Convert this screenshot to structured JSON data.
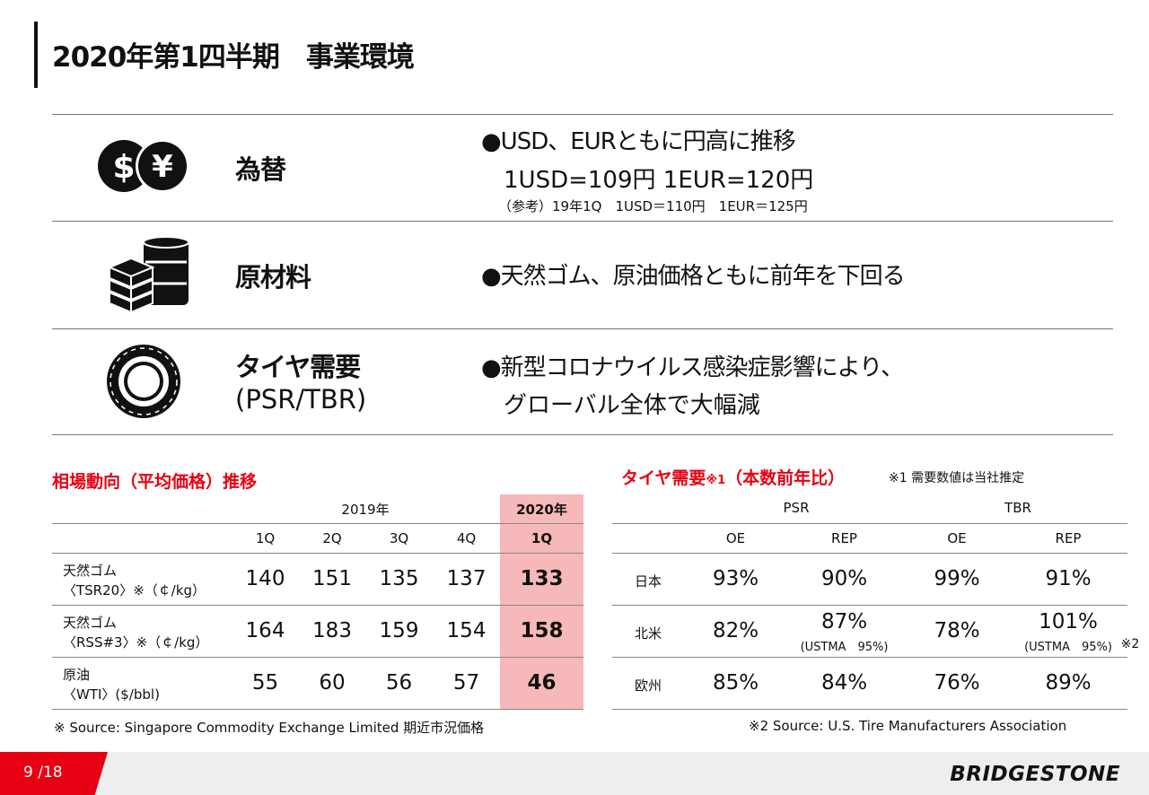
{
  "title": "2020年第1四半期　事業環境",
  "rows": [
    {
      "category": "為替",
      "bullet_line1": "●USD、EURともに円高に推移",
      "bullet_line2": "1USD=109円 1EUR=120円",
      "note": "（参考）19年1Q　1USD＝110円　1EUR＝125円",
      "icon": "currency-icon"
    },
    {
      "category": "原材料",
      "bullet_line1": "●天然ゴム、原油価格ともに前年を下回る",
      "icon": "raw-materials-icon"
    },
    {
      "category": "タイヤ需要",
      "category_sub": "(PSR/TBR)",
      "bullet_line1": "●新型コロナウイルス感染症影響により、",
      "bullet_line2": "グローバル全体で大幅減",
      "icon": "tire-icon"
    }
  ],
  "market": {
    "title": "相場動向（平均価格）推移",
    "year_2019": "2019年",
    "year_2020": "2020年",
    "quarters": [
      "1Q",
      "2Q",
      "3Q",
      "4Q",
      "1Q"
    ],
    "items": [
      {
        "name": "天然ゴム",
        "sub": "〈TSR20〉※（￠/kg）",
        "values": [
          "140",
          "151",
          "135",
          "137",
          "133"
        ]
      },
      {
        "name": "天然ゴム",
        "sub": "〈RSS#3〉※（￠/kg）",
        "values": [
          "164",
          "183",
          "159",
          "154",
          "158"
        ]
      },
      {
        "name": "原油",
        "sub": "〈WTI〉($/bbl)",
        "values": [
          "55",
          "60",
          "56",
          "57",
          "46"
        ]
      }
    ],
    "source": "※ Source: Singapore Commodity Exchange Limited 期近市況価格"
  },
  "demand": {
    "title": "タイヤ需要",
    "title_mark": "※1",
    "title_suffix": "（本数前年比）",
    "note": "※1 需要数値は当社推定",
    "groups": [
      "PSR",
      "TBR"
    ],
    "cols": [
      "OE",
      "REP",
      "OE",
      "REP"
    ],
    "regions": [
      {
        "name": "日本",
        "values": [
          "93%",
          "90%",
          "99%",
          "91%"
        ]
      },
      {
        "name": "北米",
        "values": [
          "82%",
          "87%",
          "78%",
          "101%"
        ],
        "sub_psr_rep": "(USTMA　95%)",
        "sub_tbr_rep": "(USTMA　95%)",
        "mark": "※2"
      },
      {
        "name": "欧州",
        "values": [
          "85%",
          "84%",
          "76%",
          "89%"
        ]
      }
    ],
    "source": "※2 Source: U.S. Tire Manufacturers Association"
  },
  "footer": {
    "page": "9 /18",
    "logo": "BRIDGESTONE"
  }
}
